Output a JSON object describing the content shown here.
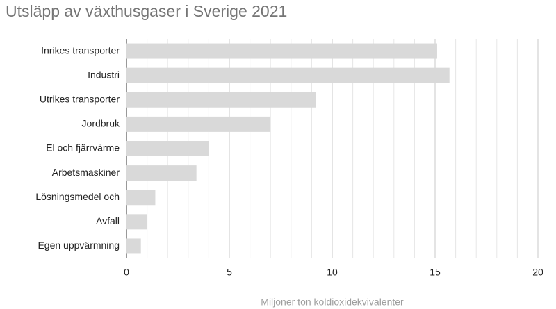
{
  "chart_data": {
    "type": "bar",
    "orientation": "horizontal",
    "title": "Utsläpp av växthusgaser i Sverige 2021",
    "x_label": "Miljoner ton koldioxidekvivalenter",
    "categories": [
      "Inrikes transporter",
      "Industri",
      "Utrikes transporter",
      "Jordbruk",
      "El och fjärrvärme",
      "Arbetsmaskiner",
      "Lösningsmedel och",
      "Avfall",
      "Egen uppvärmning"
    ],
    "values": [
      15.1,
      15.7,
      9.2,
      7.0,
      4.0,
      3.4,
      1.4,
      1.0,
      0.7
    ],
    "color": "#d9d9d9",
    "xlim": [
      0,
      20
    ],
    "xticks": [
      0,
      5,
      10,
      15,
      20
    ],
    "minor_xticks": [
      1,
      2,
      3,
      4,
      6,
      7,
      8,
      9,
      11,
      12,
      13,
      14,
      16,
      17,
      18,
      19
    ],
    "grid": true
  }
}
